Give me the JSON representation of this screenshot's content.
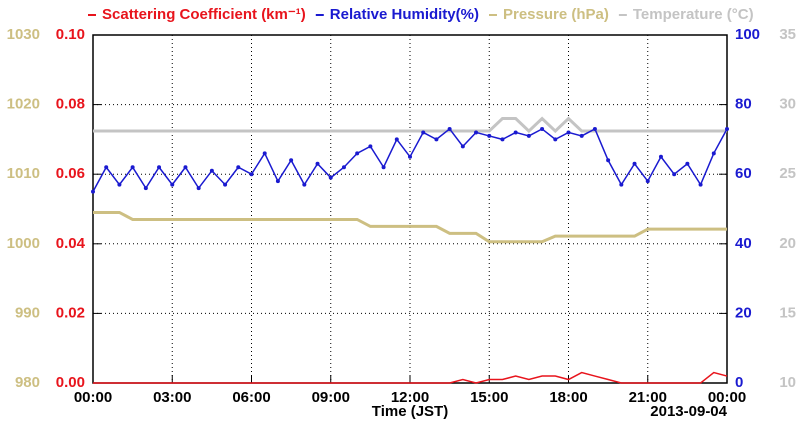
{
  "chart_data": {
    "type": "line",
    "xlabel": "Time (JST)",
    "date_label": "2013-09-04",
    "x": [
      0,
      0.5,
      1,
      1.5,
      2,
      2.5,
      3,
      3.5,
      4,
      4.5,
      5,
      5.5,
      6,
      6.5,
      7,
      7.5,
      8,
      8.5,
      9,
      9.5,
      10,
      10.5,
      11,
      11.5,
      12,
      12.5,
      13,
      13.5,
      14,
      14.5,
      15,
      15.5,
      16,
      16.5,
      17,
      17.5,
      18,
      18.5,
      19,
      19.5,
      20,
      20.5,
      21,
      21.5,
      22,
      22.5,
      23,
      23.5,
      24
    ],
    "xlim": [
      0,
      24
    ],
    "xticks": [
      {
        "value": 0,
        "label": "00:00"
      },
      {
        "value": 3,
        "label": "03:00"
      },
      {
        "value": 6,
        "label": "06:00"
      },
      {
        "value": 9,
        "label": "09:00"
      },
      {
        "value": 12,
        "label": "12:00"
      },
      {
        "value": 15,
        "label": "15:00"
      },
      {
        "value": 18,
        "label": "18:00"
      },
      {
        "value": 21,
        "label": "21:00"
      },
      {
        "value": 24,
        "label": "00:00"
      }
    ],
    "ylim": [
      0,
      0.1
    ],
    "yticks": [
      {
        "value": 0,
        "label": "0.00"
      },
      {
        "value": 0.02,
        "label": "0.02"
      },
      {
        "value": 0.04,
        "label": "0.04"
      },
      {
        "value": 0.06,
        "label": "0.06"
      },
      {
        "value": 0.08,
        "label": "0.08"
      },
      {
        "value": 0.1,
        "label": "0.10"
      }
    ],
    "y2lim": [
      0,
      100
    ],
    "y2ticks": [
      0,
      20,
      40,
      60,
      80,
      100
    ],
    "y3lim": [
      980,
      1030
    ],
    "y3ticks": [
      980,
      990,
      1000,
      1010,
      1020,
      1030
    ],
    "y4lim": [
      10,
      35
    ],
    "y4ticks": [
      10,
      15,
      20,
      25,
      30,
      35
    ],
    "grid": true,
    "series": [
      {
        "name": "Scattering Coefficient (km⁻¹)",
        "color": "#e8141c",
        "axis": "y",
        "values": [
          0,
          0,
          0,
          0,
          0,
          0,
          0,
          0,
          0,
          0,
          0,
          0,
          0,
          0,
          0,
          0,
          0,
          0,
          0,
          0,
          0,
          0,
          0,
          0,
          0,
          0,
          0,
          0,
          0.001,
          0,
          0.001,
          0.001,
          0.002,
          0.001,
          0.002,
          0.002,
          0.001,
          0.003,
          0.002,
          0.001,
          0,
          0,
          0,
          0,
          0,
          0,
          0,
          0.003,
          0.002
        ]
      },
      {
        "name": "Relative Humidity(%)",
        "color": "#1a1ad0",
        "axis": "y2",
        "values": [
          55,
          62,
          57,
          62,
          56,
          62,
          57,
          62,
          56,
          61,
          57,
          62,
          60,
          66,
          58,
          64,
          57,
          63,
          59,
          62,
          66,
          68,
          62,
          70,
          65,
          72,
          70,
          73,
          68,
          72,
          71,
          70,
          72,
          71,
          73,
          70,
          72,
          71,
          73,
          64,
          57,
          63,
          58,
          65,
          60,
          63,
          57,
          66,
          73
        ]
      },
      {
        "name": "Pressure (hPa)",
        "color": "#cdbf82",
        "axis": "y3",
        "values": [
          1004.5,
          1004.5,
          1004.5,
          1003.5,
          1003.5,
          1003.5,
          1003.5,
          1003.5,
          1003.5,
          1003.5,
          1003.5,
          1003.5,
          1003.5,
          1003.5,
          1003.5,
          1003.5,
          1003.5,
          1003.5,
          1003.5,
          1003.5,
          1003.5,
          1002.5,
          1002.5,
          1002.5,
          1002.5,
          1002.5,
          1002.5,
          1001.5,
          1001.5,
          1001.5,
          1000.3,
          1000.3,
          1000.3,
          1000.3,
          1000.3,
          1001.1,
          1001.1,
          1001.1,
          1001.1,
          1001.1,
          1001.1,
          1001.1,
          1002.1,
          1002.1,
          1002.1,
          1002.1,
          1002.1,
          1002.1,
          1002.1
        ]
      },
      {
        "name": "Temperature (°C)",
        "color": "#c4c4c4",
        "axis": "y4",
        "values": [
          28.1,
          28.1,
          28.1,
          28.1,
          28.1,
          28.1,
          28.1,
          28.1,
          28.1,
          28.1,
          28.1,
          28.1,
          28.1,
          28.1,
          28.1,
          28.1,
          28.1,
          28.1,
          28.1,
          28.1,
          28.1,
          28.1,
          28.1,
          28.1,
          28.1,
          28.1,
          28.1,
          28.1,
          28.1,
          28.1,
          28.1,
          29,
          29,
          28.1,
          29,
          28.1,
          29,
          28.1,
          28.1,
          28.1,
          28.1,
          28.1,
          28.1,
          28.1,
          28.1,
          28.1,
          28.1,
          28.1,
          28.1
        ]
      }
    ]
  }
}
